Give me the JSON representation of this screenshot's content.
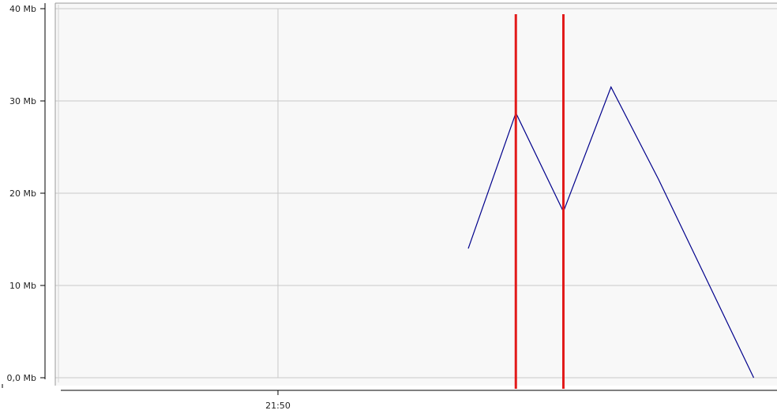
{
  "chart_data": {
    "type": "line",
    "title": "",
    "xlabel": "",
    "ylabel": "",
    "ylim": [
      0,
      40
    ],
    "yticks": [
      {
        "value": 0,
        "label": "0,0 Mb"
      },
      {
        "value": 10,
        "label": "10 Mb"
      },
      {
        "value": 20,
        "label": "20 Mb"
      },
      {
        "value": 30,
        "label": "30 Mb"
      },
      {
        "value": 40,
        "label": "40 Mb"
      }
    ],
    "xlim": [
      "21:45",
      "21:55"
    ],
    "xticks": [
      {
        "value": "21:50",
        "label": "21:50"
      }
    ],
    "grid": true,
    "series": [
      {
        "color": "#00008b",
        "points": [
          {
            "x": "21:52",
            "y": 14
          },
          {
            "x": "21:52:30",
            "y": 28.7
          },
          {
            "x": "21:53",
            "y": 18
          },
          {
            "x": "21:53:30",
            "y": 31.5
          },
          {
            "x": "21:54",
            "y": 21.5
          },
          {
            "x": "21:55",
            "y": 0
          }
        ]
      }
    ],
    "markers": [
      {
        "x": "21:52:30",
        "color": "#e21b1b"
      },
      {
        "x": "21:53",
        "color": "#e21b1b"
      }
    ]
  }
}
